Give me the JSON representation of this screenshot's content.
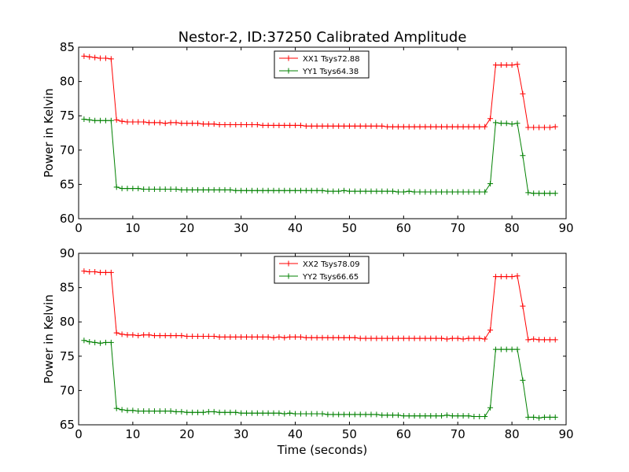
{
  "title": "Nestor-2, ID:37250 Calibrated Amplitude",
  "colors": {
    "xx": "#ff0000",
    "yy": "#008000",
    "axes": "#000000",
    "background": "#ffffff"
  },
  "chart_data": [
    {
      "type": "line",
      "title": "Nestor-2, ID:37250 Calibrated Amplitude",
      "xlabel": "",
      "ylabel": "Power in Kelvin",
      "xlim": [
        0,
        90
      ],
      "ylim": [
        60,
        85
      ],
      "xticks": [
        "0",
        "10",
        "20",
        "30",
        "40",
        "50",
        "60",
        "70",
        "80",
        "90"
      ],
      "yticks": [
        "60",
        "65",
        "70",
        "75",
        "80",
        "85"
      ],
      "grid": false,
      "legend_position": "top-center",
      "x": [
        1,
        2,
        3,
        4,
        5,
        6,
        7,
        8,
        9,
        10,
        11,
        12,
        13,
        14,
        15,
        16,
        17,
        18,
        19,
        20,
        21,
        22,
        23,
        24,
        25,
        26,
        27,
        28,
        29,
        30,
        31,
        32,
        33,
        34,
        35,
        36,
        37,
        38,
        39,
        40,
        41,
        42,
        43,
        44,
        45,
        46,
        47,
        48,
        49,
        50,
        51,
        52,
        53,
        54,
        55,
        56,
        57,
        58,
        59,
        60,
        61,
        62,
        63,
        64,
        65,
        66,
        67,
        68,
        69,
        70,
        71,
        72,
        73,
        74,
        75,
        76,
        77,
        78,
        79,
        80,
        81,
        82,
        83,
        84,
        85,
        86,
        87,
        88
      ],
      "series": [
        {
          "name": "XX1 Tsys72.88",
          "color": "#ff0000",
          "values": [
            83.7,
            83.6,
            83.5,
            83.4,
            83.4,
            83.3,
            74.4,
            74.2,
            74.1,
            74.1,
            74.1,
            74.1,
            74.0,
            74.0,
            74.0,
            73.9,
            74.0,
            74.0,
            73.9,
            73.9,
            73.9,
            73.9,
            73.8,
            73.8,
            73.8,
            73.7,
            73.7,
            73.7,
            73.7,
            73.7,
            73.7,
            73.7,
            73.7,
            73.6,
            73.6,
            73.6,
            73.6,
            73.6,
            73.6,
            73.6,
            73.6,
            73.5,
            73.5,
            73.5,
            73.5,
            73.5,
            73.5,
            73.5,
            73.5,
            73.5,
            73.5,
            73.5,
            73.5,
            73.5,
            73.5,
            73.5,
            73.4,
            73.4,
            73.4,
            73.4,
            73.4,
            73.4,
            73.4,
            73.4,
            73.4,
            73.4,
            73.4,
            73.4,
            73.4,
            73.4,
            73.4,
            73.4,
            73.4,
            73.4,
            73.4,
            74.6,
            82.4,
            82.4,
            82.4,
            82.4,
            82.5,
            78.2,
            73.3,
            73.3,
            73.3,
            73.3,
            73.3,
            73.4
          ]
        },
        {
          "name": "YY1 Tsys64.38",
          "color": "#008000",
          "values": [
            74.5,
            74.4,
            74.3,
            74.3,
            74.3,
            74.3,
            64.6,
            64.4,
            64.4,
            64.4,
            64.4,
            64.3,
            64.3,
            64.3,
            64.3,
            64.3,
            64.3,
            64.3,
            64.2,
            64.2,
            64.2,
            64.2,
            64.2,
            64.2,
            64.2,
            64.2,
            64.2,
            64.2,
            64.1,
            64.1,
            64.1,
            64.1,
            64.1,
            64.1,
            64.1,
            64.1,
            64.1,
            64.1,
            64.1,
            64.1,
            64.1,
            64.1,
            64.1,
            64.1,
            64.1,
            64.0,
            64.0,
            64.0,
            64.1,
            64.0,
            64.0,
            64.0,
            64.0,
            64.0,
            64.0,
            64.0,
            64.0,
            64.0,
            63.9,
            63.9,
            64.0,
            63.9,
            63.9,
            63.9,
            63.9,
            63.9,
            63.9,
            63.9,
            63.9,
            63.9,
            63.9,
            63.9,
            63.9,
            63.9,
            63.9,
            65.1,
            74.0,
            73.9,
            73.9,
            73.8,
            73.9,
            69.2,
            63.8,
            63.7,
            63.7,
            63.7,
            63.7,
            63.7
          ]
        }
      ]
    },
    {
      "type": "line",
      "title": "",
      "xlabel": "Time (seconds)",
      "ylabel": "Power in Kelvin",
      "xlim": [
        0,
        90
      ],
      "ylim": [
        65,
        90
      ],
      "xticks": [
        "0",
        "10",
        "20",
        "30",
        "40",
        "50",
        "60",
        "70",
        "80",
        "90"
      ],
      "yticks": [
        "65",
        "70",
        "75",
        "80",
        "85",
        "90"
      ],
      "grid": false,
      "legend_position": "top-center",
      "x": [
        1,
        2,
        3,
        4,
        5,
        6,
        7,
        8,
        9,
        10,
        11,
        12,
        13,
        14,
        15,
        16,
        17,
        18,
        19,
        20,
        21,
        22,
        23,
        24,
        25,
        26,
        27,
        28,
        29,
        30,
        31,
        32,
        33,
        34,
        35,
        36,
        37,
        38,
        39,
        40,
        41,
        42,
        43,
        44,
        45,
        46,
        47,
        48,
        49,
        50,
        51,
        52,
        53,
        54,
        55,
        56,
        57,
        58,
        59,
        60,
        61,
        62,
        63,
        64,
        65,
        66,
        67,
        68,
        69,
        70,
        71,
        72,
        73,
        74,
        75,
        76,
        77,
        78,
        79,
        80,
        81,
        82,
        83,
        84,
        85,
        86,
        87,
        88
      ],
      "series": [
        {
          "name": "XX2 Tsys78.09",
          "color": "#ff0000",
          "values": [
            87.4,
            87.3,
            87.3,
            87.2,
            87.2,
            87.2,
            78.4,
            78.2,
            78.1,
            78.1,
            78.0,
            78.1,
            78.1,
            78.0,
            78.0,
            78.0,
            78.0,
            78.0,
            78.0,
            77.9,
            77.9,
            77.9,
            77.9,
            77.9,
            77.9,
            77.8,
            77.8,
            77.8,
            77.8,
            77.8,
            77.8,
            77.8,
            77.8,
            77.8,
            77.8,
            77.7,
            77.8,
            77.7,
            77.8,
            77.8,
            77.8,
            77.7,
            77.7,
            77.7,
            77.7,
            77.7,
            77.7,
            77.7,
            77.7,
            77.7,
            77.7,
            77.6,
            77.6,
            77.6,
            77.6,
            77.6,
            77.6,
            77.6,
            77.6,
            77.6,
            77.6,
            77.6,
            77.6,
            77.6,
            77.6,
            77.6,
            77.6,
            77.5,
            77.6,
            77.6,
            77.5,
            77.6,
            77.6,
            77.6,
            77.5,
            78.8,
            86.6,
            86.6,
            86.6,
            86.6,
            86.7,
            82.3,
            77.4,
            77.5,
            77.4,
            77.4,
            77.4,
            77.4
          ]
        },
        {
          "name": "YY2 Tsys66.65",
          "color": "#008000",
          "values": [
            77.3,
            77.1,
            77.0,
            76.9,
            77.0,
            77.0,
            67.4,
            67.2,
            67.1,
            67.1,
            67.0,
            67.0,
            67.0,
            67.0,
            67.0,
            67.0,
            67.0,
            66.9,
            66.9,
            66.8,
            66.8,
            66.8,
            66.8,
            66.9,
            66.9,
            66.8,
            66.8,
            66.8,
            66.8,
            66.7,
            66.7,
            66.7,
            66.7,
            66.7,
            66.7,
            66.7,
            66.7,
            66.6,
            66.7,
            66.6,
            66.6,
            66.6,
            66.6,
            66.6,
            66.6,
            66.5,
            66.5,
            66.5,
            66.5,
            66.5,
            66.5,
            66.5,
            66.5,
            66.5,
            66.5,
            66.4,
            66.4,
            66.4,
            66.4,
            66.3,
            66.3,
            66.3,
            66.3,
            66.3,
            66.3,
            66.3,
            66.3,
            66.4,
            66.3,
            66.3,
            66.3,
            66.3,
            66.2,
            66.2,
            66.2,
            67.5,
            76.0,
            76.0,
            76.0,
            76.0,
            76.0,
            71.5,
            66.1,
            66.1,
            66.0,
            66.1,
            66.1,
            66.1
          ]
        }
      ]
    }
  ]
}
